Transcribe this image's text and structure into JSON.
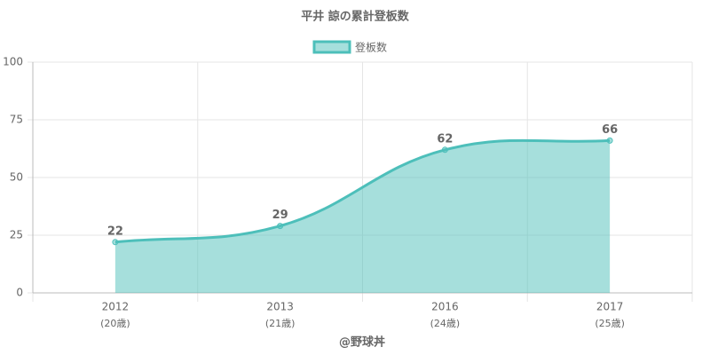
{
  "chart_data": {
    "type": "line",
    "title": "平井 諒の累計登板数",
    "categories": [
      "2012",
      "2013",
      "2016",
      "2017"
    ],
    "category_sublabels": [
      "(20歳)",
      "(21歳)",
      "(24歳)",
      "(25歳)"
    ],
    "x_label": "@野球丼",
    "series": [
      {
        "name": "登板数",
        "color": "#4dbfba",
        "fill": "rgba(77,191,186,0.5)",
        "values": [
          22,
          29,
          62,
          66
        ]
      }
    ],
    "ylim": [
      0,
      100
    ],
    "yticks": [
      0,
      25,
      50,
      75,
      100
    ],
    "grid": true,
    "legend": "top"
  }
}
